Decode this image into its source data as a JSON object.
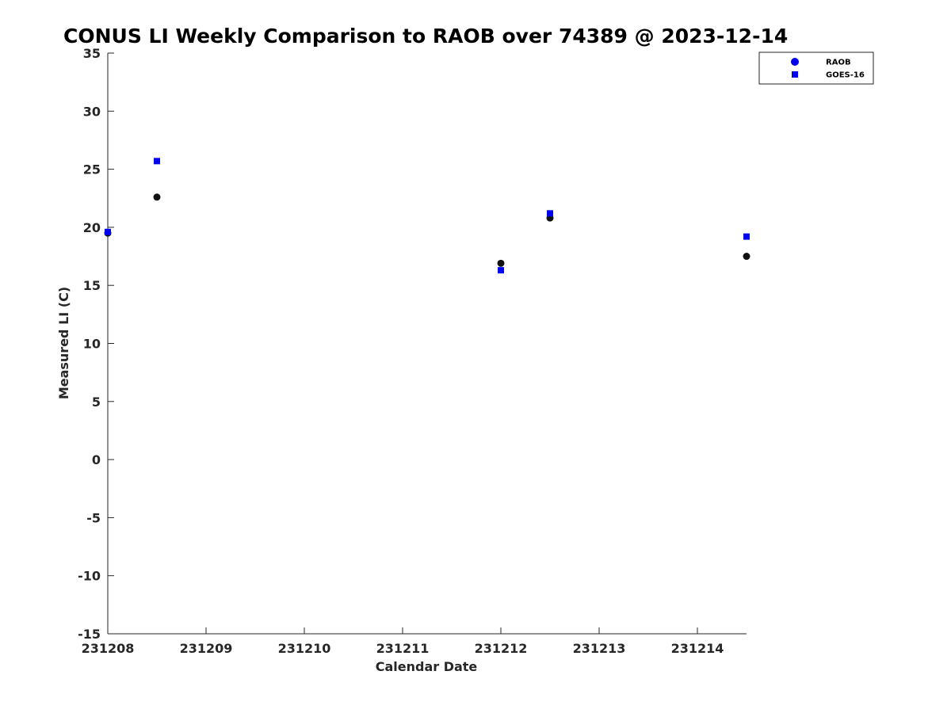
{
  "chart_data": {
    "type": "scatter",
    "title": "CONUS LI Weekly Comparison to RAOB over 74389 @ 2023-12-14",
    "xlabel": "Calendar Date",
    "ylabel": "Measured LI (C)",
    "xlim": [
      231208,
      231214.5
    ],
    "ylim": [
      -15,
      35
    ],
    "x_ticks": [
      231208,
      231209,
      231210,
      231211,
      231212,
      231213,
      231214
    ],
    "x_tick_labels": [
      "231208",
      "231209",
      "231210",
      "231211",
      "231212",
      "231213",
      "231214"
    ],
    "y_ticks": [
      35,
      30,
      25,
      20,
      15,
      10,
      5,
      0,
      -5,
      -10,
      -15
    ],
    "y_tick_labels": [
      "35",
      "30",
      "25",
      "20",
      "15",
      "10",
      "5",
      "0",
      "-5",
      "-10",
      "-15"
    ],
    "grid": false,
    "legend_position": "top-right",
    "series": [
      {
        "name": "RAOB",
        "marker": "circle",
        "legend_color": "#0000ee",
        "point_color": "#111111",
        "x": [
          231208,
          231208.5,
          231212,
          231212.5,
          231214.5
        ],
        "y": [
          19.5,
          22.6,
          16.9,
          20.8,
          17.5
        ]
      },
      {
        "name": "GOES-16",
        "marker": "square",
        "legend_color": "#0000ee",
        "point_color": "#0000ee",
        "x": [
          231208,
          231208.5,
          231212,
          231212.5,
          231214.5
        ],
        "y": [
          19.6,
          25.7,
          16.3,
          21.2,
          19.2
        ]
      }
    ]
  }
}
